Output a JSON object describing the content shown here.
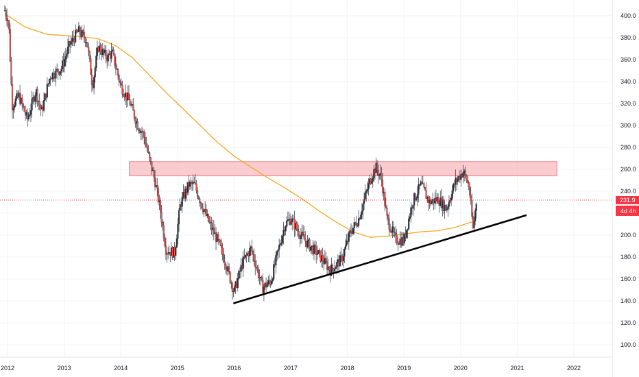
{
  "chart_data": {
    "type": "candlestick",
    "price_axis": {
      "ticks": [
        "100.0",
        "120.0",
        "140.0",
        "160.0",
        "180.0",
        "200.0",
        "220.0",
        "240.0",
        "260.0",
        "280.0",
        "300.0",
        "320.0",
        "340.0",
        "360.0",
        "380.0",
        "400.0"
      ],
      "range": [
        88,
        420
      ]
    },
    "time_axis": {
      "ticks": [
        "2012",
        "2013",
        "2014",
        "2015",
        "2016",
        "2017",
        "2018",
        "2019",
        "2020",
        "2021",
        "2022"
      ],
      "range": [
        2011.95,
        2023.0
      ]
    },
    "last_price": {
      "value": 231.9,
      "label": "231.9",
      "countdown": "4d 4h",
      "color": "#f23645"
    },
    "resistance_zone": {
      "from_date": 2014.15,
      "to_date": 2021.7,
      "low": 254,
      "high": 267,
      "color": "#f5a3a8"
    },
    "trendline": {
      "points": [
        [
          2016.0,
          138
        ],
        [
          2021.15,
          218
        ]
      ],
      "color": "#000000"
    },
    "moving_average": {
      "color": "#f7a823",
      "points": [
        [
          2011.95,
          402
        ],
        [
          2012.3,
          390
        ],
        [
          2012.7,
          383
        ],
        [
          2013.0,
          382
        ],
        [
          2013.3,
          381
        ],
        [
          2013.6,
          379
        ],
        [
          2013.9,
          373
        ],
        [
          2014.2,
          362
        ],
        [
          2014.5,
          346
        ],
        [
          2014.8,
          330
        ],
        [
          2015.1,
          315
        ],
        [
          2015.4,
          300
        ],
        [
          2015.7,
          285
        ],
        [
          2016.0,
          272
        ],
        [
          2016.3,
          262
        ],
        [
          2016.6,
          252
        ],
        [
          2016.9,
          243
        ],
        [
          2017.2,
          233
        ],
        [
          2017.5,
          222
        ],
        [
          2017.8,
          212
        ],
        [
          2018.1,
          203
        ],
        [
          2018.4,
          198
        ],
        [
          2018.7,
          199
        ],
        [
          2019.0,
          201
        ],
        [
          2019.3,
          203
        ],
        [
          2019.6,
          204
        ],
        [
          2019.9,
          207
        ],
        [
          2020.2,
          212
        ]
      ]
    },
    "price_path": [
      [
        2011.95,
        405
      ],
      [
        2012.02,
        395
      ],
      [
        2012.08,
        318
      ],
      [
        2012.2,
        327
      ],
      [
        2012.35,
        305
      ],
      [
        2012.5,
        332
      ],
      [
        2012.6,
        312
      ],
      [
        2012.75,
        345
      ],
      [
        2012.95,
        352
      ],
      [
        2013.1,
        374
      ],
      [
        2013.25,
        386
      ],
      [
        2013.4,
        378
      ],
      [
        2013.5,
        336
      ],
      [
        2013.6,
        372
      ],
      [
        2013.75,
        362
      ],
      [
        2013.85,
        366
      ],
      [
        2014.0,
        336
      ],
      [
        2014.15,
        322
      ],
      [
        2014.3,
        300
      ],
      [
        2014.4,
        292
      ],
      [
        2014.5,
        270
      ],
      [
        2014.6,
        250
      ],
      [
        2014.7,
        222
      ],
      [
        2014.8,
        186
      ],
      [
        2014.95,
        184
      ],
      [
        2015.05,
        228
      ],
      [
        2015.2,
        246
      ],
      [
        2015.3,
        246
      ],
      [
        2015.4,
        232
      ],
      [
        2015.55,
        212
      ],
      [
        2015.7,
        196
      ],
      [
        2015.85,
        175
      ],
      [
        2016.0,
        148
      ],
      [
        2016.15,
        175
      ],
      [
        2016.3,
        188
      ],
      [
        2016.5,
        152
      ],
      [
        2016.65,
        158
      ],
      [
        2016.8,
        190
      ],
      [
        2016.9,
        210
      ],
      [
        2017.0,
        215
      ],
      [
        2017.15,
        202
      ],
      [
        2017.3,
        192
      ],
      [
        2017.5,
        182
      ],
      [
        2017.7,
        168
      ],
      [
        2017.9,
        178
      ],
      [
        2018.05,
        202
      ],
      [
        2018.2,
        215
      ],
      [
        2018.4,
        250
      ],
      [
        2018.5,
        262
      ],
      [
        2018.6,
        252
      ],
      [
        2018.7,
        215
      ],
      [
        2018.85,
        196
      ],
      [
        2019.0,
        195
      ],
      [
        2019.15,
        230
      ],
      [
        2019.3,
        246
      ],
      [
        2019.45,
        230
      ],
      [
        2019.6,
        233
      ],
      [
        2019.75,
        224
      ],
      [
        2019.9,
        248
      ],
      [
        2020.05,
        258
      ],
      [
        2020.15,
        244
      ],
      [
        2020.22,
        205
      ],
      [
        2020.28,
        232
      ]
    ]
  }
}
